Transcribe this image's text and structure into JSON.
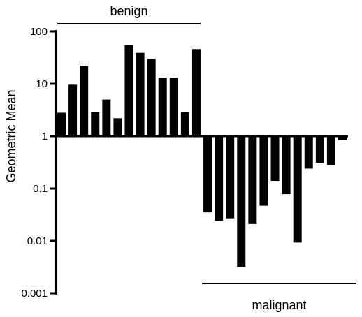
{
  "chart_data": {
    "type": "bar",
    "title": "",
    "xlabel": "",
    "ylabel": "Geometric Mean",
    "y_scale": "log",
    "baseline": 1,
    "ylim": [
      0.001,
      100
    ],
    "y_ticks": [
      {
        "value": 100,
        "label": "100"
      },
      {
        "value": 10,
        "label": "10"
      },
      {
        "value": 1,
        "label": "1"
      },
      {
        "value": 0.1,
        "label": "0.1"
      },
      {
        "value": 0.01,
        "label": "0.01"
      },
      {
        "value": 0.001,
        "label": "0.001"
      }
    ],
    "grid": false,
    "legend": "none",
    "bar_color": "#000000",
    "groups": [
      {
        "label": "benign",
        "start": 1,
        "end": 13,
        "bracket": "top"
      },
      {
        "label": "malignant",
        "start": 14,
        "end": 26,
        "bracket": "bottom"
      }
    ],
    "values": [
      2.8,
      9.6,
      22,
      2.9,
      5.0,
      2.2,
      55,
      39,
      30,
      13,
      13,
      2.9,
      46,
      0.035,
      0.024,
      0.027,
      0.0032,
      0.021,
      0.047,
      0.14,
      0.078,
      0.0093,
      0.24,
      0.31,
      0.28,
      0.85
    ]
  }
}
